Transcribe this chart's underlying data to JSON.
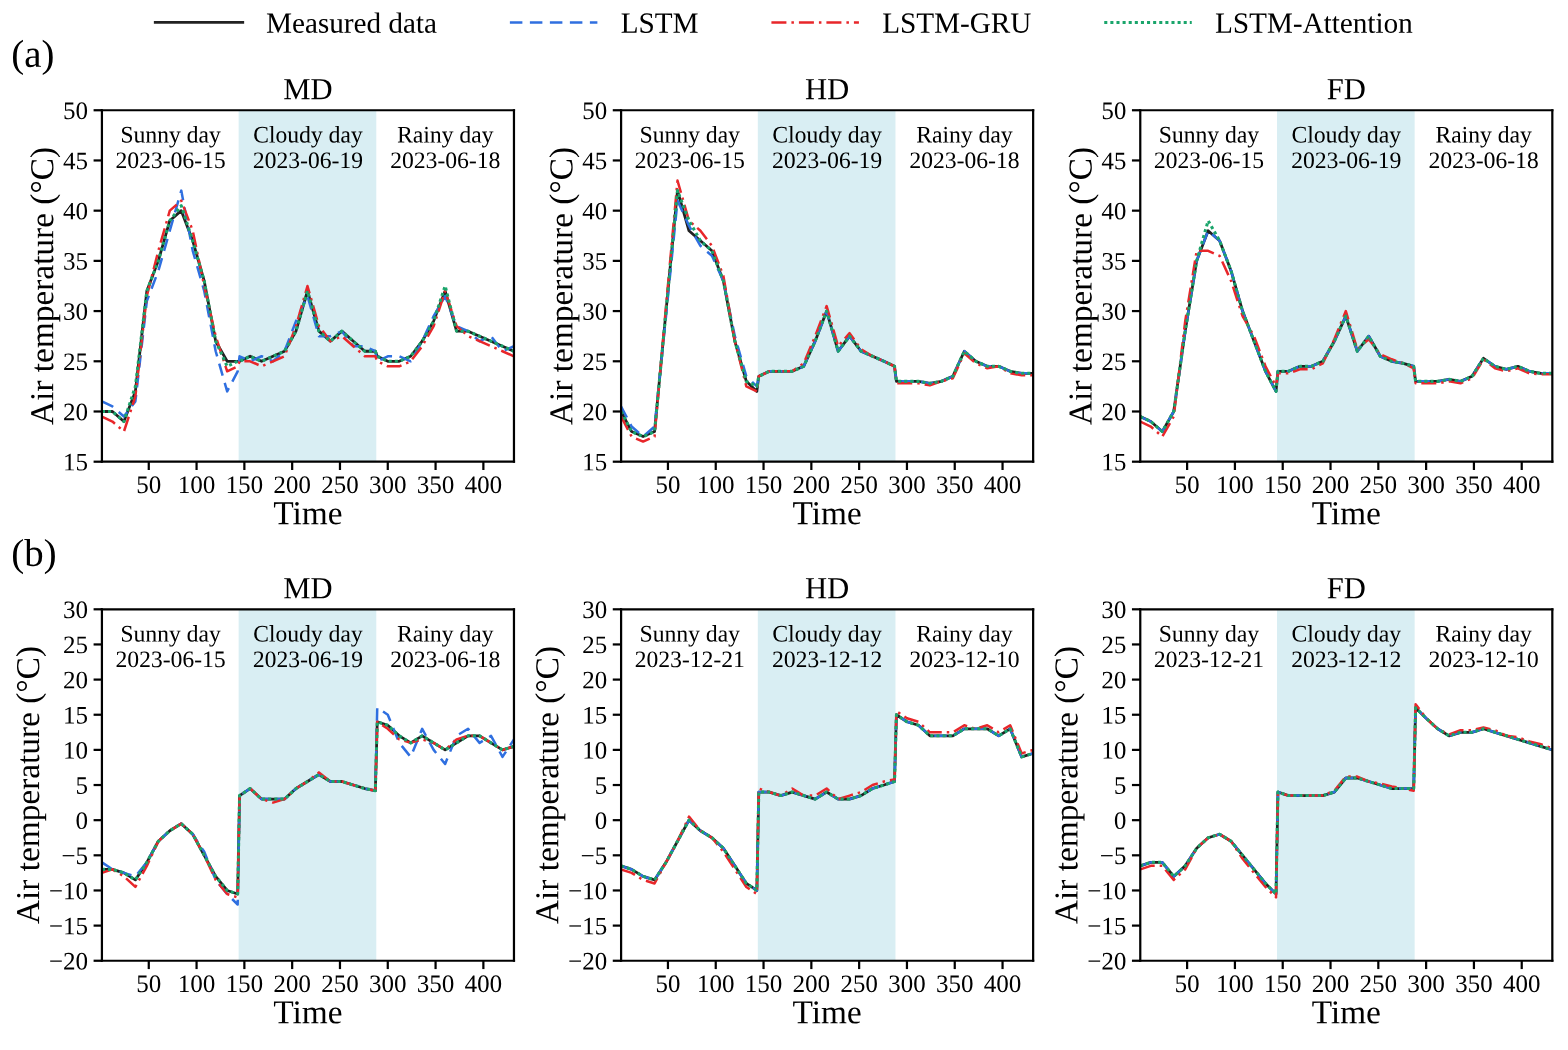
{
  "chart_data": [
    {
      "type": "line",
      "title": "MD",
      "xlabel": "Time",
      "ylabel": "Air temperature (°C)",
      "legend": "top",
      "annotations": [
        "Sunny day\n2023-06-15",
        "Cloudy day\n2023-06-19",
        "Rainy day\n2023-06-18",
        "(a)"
      ],
      "bands": [
        {
          "axis": "x",
          "from": 144,
          "to": 288,
          "color": "#d9eef3"
        }
      ],
      "xlim": [
        1,
        432
      ],
      "xticks": [
        50,
        100,
        150,
        200,
        250,
        300,
        350,
        400
      ],
      "ylim": [
        15,
        50
      ],
      "yticks": [
        15,
        20,
        25,
        30,
        35,
        40,
        45,
        50
      ],
      "x": [
        1,
        12,
        24,
        36,
        48,
        60,
        72,
        84,
        96,
        108,
        120,
        132,
        143,
        145,
        156,
        168,
        180,
        192,
        204,
        216,
        228,
        240,
        252,
        264,
        276,
        287,
        289,
        300,
        312,
        324,
        336,
        348,
        360,
        372,
        384,
        396,
        408,
        420,
        432
      ],
      "series": [
        {
          "name": "Measured data",
          "color": "#222222",
          "line_style": "solid",
          "values": [
            20,
            20,
            19,
            22,
            32,
            35,
            39,
            40,
            37,
            33,
            27,
            25,
            25,
            25,
            25.5,
            25,
            25.5,
            26,
            28,
            32,
            28,
            27,
            28,
            27,
            26,
            26,
            25.5,
            25,
            25,
            25.5,
            27,
            29,
            32,
            28,
            28,
            27.5,
            27,
            26.5,
            26
          ]
        },
        {
          "name": "LSTM",
          "color": "#2f6fe0",
          "line_style": "dashed",
          "values": [
            21,
            20.5,
            19.5,
            21,
            31,
            34,
            38,
            42,
            36,
            32,
            26,
            22,
            24,
            25.5,
            25,
            25.5,
            25,
            26,
            29,
            31.5,
            27.5,
            27.5,
            28,
            26.5,
            26.5,
            26,
            25,
            25.5,
            25.5,
            25,
            27,
            29.5,
            31.5,
            28.5,
            28,
            27,
            27.5,
            26,
            26.5
          ]
        },
        {
          "name": "LSTM-GRU",
          "color": "#e8262a",
          "line_style": "dashdot",
          "values": [
            19.5,
            19,
            18,
            21.5,
            31.5,
            36,
            40,
            41,
            38,
            32.5,
            27.5,
            24,
            24.5,
            25,
            25,
            24.5,
            25,
            25.5,
            28.5,
            32.5,
            28.5,
            27,
            27.5,
            26.5,
            25.5,
            25.5,
            25,
            24.5,
            24.5,
            25,
            26.5,
            28.5,
            32,
            28.5,
            27.5,
            27,
            26.5,
            26,
            25.5
          ]
        },
        {
          "name": "LSTM-Attention",
          "color": "#1aa56b",
          "line_style": "dotted",
          "values": [
            20,
            20,
            19,
            22.5,
            32,
            35,
            39,
            40.5,
            37,
            33,
            27,
            24.5,
            25,
            25,
            25.5,
            25,
            25.5,
            26,
            28,
            32,
            28,
            27,
            28,
            27,
            26,
            26,
            25.5,
            25,
            25,
            25.5,
            27,
            29,
            32.5,
            28,
            28,
            27.5,
            27,
            26.5,
            26
          ]
        }
      ]
    },
    {
      "type": "line",
      "title": "HD",
      "xlabel": "Time",
      "ylabel": "Air temperature (°C)",
      "annotations": [
        "Sunny day\n2023-06-15",
        "Cloudy day\n2023-06-19",
        "Rainy day\n2023-06-18"
      ],
      "bands": [
        {
          "axis": "x",
          "from": 144,
          "to": 288,
          "color": "#d9eef3"
        }
      ],
      "xlim": [
        1,
        432
      ],
      "xticks": [
        50,
        100,
        150,
        200,
        250,
        300,
        350,
        400
      ],
      "ylim": [
        15,
        50
      ],
      "yticks": [
        15,
        20,
        25,
        30,
        35,
        40,
        45,
        50
      ],
      "x": [
        1,
        12,
        24,
        36,
        48,
        60,
        72,
        84,
        96,
        108,
        120,
        132,
        143,
        145,
        156,
        168,
        180,
        192,
        204,
        216,
        228,
        240,
        252,
        264,
        276,
        287,
        289,
        300,
        312,
        324,
        336,
        348,
        360,
        372,
        384,
        396,
        408,
        420,
        432
      ],
      "series": [
        {
          "color": "#222222",
          "line_style": "solid",
          "values": [
            20,
            18,
            17.5,
            18,
            30,
            42,
            38,
            37,
            36,
            33,
            27,
            23,
            22,
            23.5,
            24,
            24,
            24,
            24.5,
            27,
            30,
            26,
            27.5,
            26,
            25.5,
            25,
            24.5,
            23,
            23,
            23,
            22.8,
            23,
            23.5,
            26,
            25,
            24.5,
            24.5,
            24,
            23.8,
            23.8
          ]
        },
        {
          "color": "#2f6fe0",
          "line_style": "dashed",
          "values": [
            20.5,
            18.5,
            17.5,
            18.5,
            29.5,
            41,
            38.5,
            36.5,
            35.5,
            33,
            27.5,
            23.5,
            22.5,
            23.5,
            24,
            24,
            24,
            24.5,
            27,
            30,
            26,
            27.5,
            26,
            25.5,
            25,
            24.5,
            23,
            23,
            23,
            22.8,
            23,
            23.5,
            26,
            25,
            24.5,
            24.5,
            24,
            23.8,
            23.8
          ]
        },
        {
          "color": "#e8262a",
          "line_style": "dashdot",
          "values": [
            19.5,
            17.5,
            17,
            17.5,
            30.5,
            43,
            39,
            38,
            36.5,
            33.5,
            27,
            22.5,
            22,
            23.5,
            24,
            24,
            24,
            24.8,
            27.5,
            30.5,
            26.5,
            27.8,
            26.2,
            25.5,
            25,
            24.5,
            22.8,
            22.8,
            22.8,
            22.6,
            23,
            23.3,
            25.8,
            24.8,
            24.3,
            24.5,
            23.8,
            23.6,
            23.6
          ]
        },
        {
          "color": "#1aa56b",
          "line_style": "dotted",
          "values": [
            20,
            18,
            17.5,
            18,
            30,
            42,
            39,
            37,
            36,
            33,
            27,
            23,
            22.5,
            23.5,
            24,
            24,
            24,
            24.5,
            27,
            30,
            26,
            27.5,
            26,
            25.5,
            25,
            24.5,
            23,
            23,
            23,
            22.8,
            23,
            23.5,
            26,
            25,
            24.5,
            24.5,
            24,
            23.8,
            23.8
          ]
        }
      ]
    },
    {
      "type": "line",
      "title": "FD",
      "xlabel": "Time",
      "ylabel": "Air temperature (°C)",
      "annotations": [
        "Sunny day\n2023-06-15",
        "Cloudy day\n2023-06-19",
        "Rainy day\n2023-06-18"
      ],
      "bands": [
        {
          "axis": "x",
          "from": 144,
          "to": 288,
          "color": "#d9eef3"
        }
      ],
      "xlim": [
        1,
        432
      ],
      "xticks": [
        50,
        100,
        150,
        200,
        250,
        300,
        350,
        400
      ],
      "ylim": [
        15,
        50
      ],
      "yticks": [
        15,
        20,
        25,
        30,
        35,
        40,
        45,
        50
      ],
      "x": [
        1,
        12,
        24,
        36,
        48,
        60,
        72,
        84,
        96,
        108,
        120,
        132,
        143,
        145,
        156,
        168,
        180,
        192,
        204,
        216,
        228,
        240,
        252,
        264,
        276,
        287,
        289,
        300,
        312,
        324,
        336,
        348,
        360,
        372,
        384,
        396,
        408,
        420,
        432
      ],
      "series": [
        {
          "color": "#222222",
          "line_style": "solid",
          "values": [
            19.5,
            19,
            18,
            20,
            28,
            35,
            38,
            37,
            34,
            30,
            27,
            24,
            22,
            24,
            24,
            24.5,
            24.5,
            25,
            27,
            29.5,
            26,
            27.5,
            25.5,
            25,
            24.8,
            24.5,
            23,
            23,
            23,
            23.2,
            23,
            23.5,
            25.3,
            24.5,
            24.2,
            24.5,
            24,
            23.8,
            23.8
          ]
        },
        {
          "color": "#2f6fe0",
          "line_style": "dashed",
          "values": [
            19.5,
            19,
            18,
            20,
            28,
            35,
            38,
            37,
            34,
            30,
            27,
            24,
            22,
            24,
            24,
            24.5,
            24.5,
            25,
            27,
            29.5,
            26,
            27.5,
            25.5,
            25,
            24.8,
            24.5,
            23,
            23,
            23,
            23.2,
            23,
            23.5,
            25.3,
            24.5,
            24.2,
            24.5,
            24,
            23.8,
            23.8
          ]
        },
        {
          "color": "#e8262a",
          "line_style": "dashdot",
          "values": [
            19,
            18.5,
            17.5,
            19.5,
            29,
            36,
            36,
            35.5,
            33,
            29.5,
            27.5,
            24.5,
            22.5,
            23.8,
            23.8,
            24.2,
            24.2,
            24.8,
            27.2,
            30,
            26.2,
            27.2,
            25.7,
            25.2,
            24.8,
            24.3,
            22.8,
            22.8,
            22.8,
            23,
            22.8,
            23.3,
            25.2,
            24.3,
            24,
            24.3,
            23.8,
            23.7,
            23.7
          ]
        },
        {
          "color": "#1aa56b",
          "line_style": "dotted",
          "values": [
            19.5,
            19,
            18,
            20,
            28,
            35,
            39,
            37,
            34,
            30,
            27,
            24,
            22,
            24,
            24,
            24.5,
            24.5,
            25,
            27,
            29.5,
            26,
            27.5,
            25.5,
            25,
            24.8,
            24.5,
            23,
            23,
            23,
            23.2,
            23,
            23.5,
            25.3,
            24.5,
            24.2,
            24.5,
            24,
            23.8,
            23.8
          ]
        }
      ]
    },
    {
      "type": "line",
      "title": "MD",
      "xlabel": "Time",
      "ylabel": "Air temperature (°C)",
      "annotations": [
        "Sunny day\n2023-06-15",
        "Cloudy day\n2023-06-19",
        "Rainy day\n2023-06-18",
        "(b)"
      ],
      "bands": [
        {
          "axis": "x",
          "from": 144,
          "to": 288,
          "color": "#d9eef3"
        }
      ],
      "xlim": [
        1,
        432
      ],
      "xticks": [
        50,
        100,
        150,
        200,
        250,
        300,
        350,
        400
      ],
      "ylim": [
        -20,
        30
      ],
      "yticks": [
        {
          "value": -20,
          "label": "−20"
        },
        {
          "value": -15,
          "label": "−15"
        },
        {
          "value": -10,
          "label": "−10"
        },
        {
          "value": -5,
          "label": "−5"
        },
        0,
        5,
        10,
        15,
        20,
        25,
        30
      ],
      "x": [
        1,
        12,
        24,
        36,
        48,
        60,
        72,
        84,
        96,
        108,
        120,
        132,
        143,
        145,
        156,
        168,
        180,
        192,
        204,
        216,
        228,
        240,
        252,
        264,
        276,
        287,
        289,
        300,
        312,
        324,
        336,
        348,
        360,
        372,
        384,
        396,
        408,
        420,
        432
      ],
      "series": [
        {
          "color": "#222222",
          "line_style": "solid",
          "values": [
            -7,
            -7,
            -7.5,
            -8.5,
            -6,
            -3,
            -1.5,
            -0.5,
            -2,
            -5,
            -8,
            -10,
            -10.5,
            3.5,
            4.5,
            3,
            3,
            3,
            4.5,
            5.5,
            6.5,
            5.5,
            5.5,
            5,
            4.5,
            4.2,
            14,
            13.5,
            12,
            11,
            12,
            11,
            10,
            11,
            12,
            12,
            11,
            10,
            10.5
          ]
        },
        {
          "color": "#2f6fe0",
          "line_style": "dashed",
          "values": [
            -6,
            -7,
            -7.5,
            -8,
            -6,
            -3,
            -1.5,
            -0.5,
            -2,
            -4.5,
            -8.5,
            -10.5,
            -12,
            3.5,
            4.5,
            3,
            3,
            3,
            4.5,
            5.5,
            6.5,
            5.5,
            5.5,
            5,
            4.5,
            4.2,
            16,
            15,
            11,
            9,
            13,
            10,
            8,
            12,
            13,
            11,
            12,
            9,
            11.5
          ]
        },
        {
          "color": "#e8262a",
          "line_style": "dashdot",
          "values": [
            -7.5,
            -7,
            -8,
            -9.5,
            -6.5,
            -3,
            -1.5,
            -0.5,
            -2,
            -5,
            -8.5,
            -10.5,
            -11,
            3.5,
            4.5,
            3,
            2.5,
            3,
            4.5,
            5.5,
            6.8,
            5.5,
            5.5,
            5,
            4.5,
            4.2,
            14,
            13,
            11.5,
            11,
            11.5,
            11,
            10,
            11.5,
            12,
            12,
            11,
            10,
            10.5
          ]
        },
        {
          "color": "#1aa56b",
          "line_style": "dotted",
          "values": [
            -7,
            -7,
            -7.5,
            -8.5,
            -6,
            -3,
            -1.5,
            -0.5,
            -2,
            -5,
            -8,
            -10,
            -10.5,
            3.5,
            4.5,
            3,
            3,
            3,
            4.5,
            5.5,
            6.5,
            5.5,
            5.5,
            5,
            4.5,
            4.2,
            14,
            13.5,
            12,
            11,
            12,
            11,
            10,
            11,
            12,
            12,
            11,
            10,
            10.5
          ]
        }
      ]
    },
    {
      "type": "line",
      "title": "HD",
      "xlabel": "Time",
      "ylabel": "Air temperature (°C)",
      "annotations": [
        "Sunny day\n2023-12-21",
        "Cloudy day\n2023-12-12",
        "Rainy day\n2023-12-10"
      ],
      "bands": [
        {
          "axis": "x",
          "from": 144,
          "to": 288,
          "color": "#d9eef3"
        }
      ],
      "xlim": [
        1,
        432
      ],
      "xticks": [
        50,
        100,
        150,
        200,
        250,
        300,
        350,
        400
      ],
      "ylim": [
        -20,
        30
      ],
      "yticks": [
        {
          "value": -20,
          "label": "−20"
        },
        {
          "value": -15,
          "label": "−15"
        },
        {
          "value": -10,
          "label": "−10"
        },
        {
          "value": -5,
          "label": "−5"
        },
        0,
        5,
        10,
        15,
        20,
        25,
        30
      ],
      "x": [
        1,
        12,
        24,
        36,
        48,
        60,
        72,
        84,
        96,
        108,
        120,
        132,
        143,
        145,
        156,
        168,
        180,
        192,
        204,
        216,
        228,
        240,
        252,
        264,
        276,
        287,
        289,
        300,
        312,
        324,
        336,
        348,
        360,
        372,
        384,
        396,
        408,
        420,
        432
      ],
      "series": [
        {
          "color": "#222222",
          "line_style": "solid",
          "values": [
            -6.5,
            -7,
            -8,
            -8.5,
            -6,
            -3,
            0,
            -1.5,
            -2.5,
            -4,
            -6.5,
            -9,
            -10,
            4,
            4,
            3.5,
            4,
            3.5,
            3,
            4,
            3,
            3,
            3.5,
            4.5,
            5,
            5.5,
            15,
            14,
            13.5,
            12,
            12,
            12,
            13,
            13,
            13,
            12,
            13,
            9,
            9.5
          ]
        },
        {
          "color": "#2f6fe0",
          "line_style": "dashed",
          "values": [
            -6.5,
            -7,
            -8,
            -8.5,
            -6,
            -3,
            0,
            -1.5,
            -2.5,
            -4,
            -6.5,
            -9,
            -10,
            4,
            4,
            3.5,
            4,
            3.5,
            3,
            4,
            3,
            3,
            3.5,
            4.5,
            5,
            5.5,
            15,
            14,
            13.5,
            12,
            12,
            12,
            13,
            13,
            13,
            12,
            13,
            9,
            9.5
          ]
        },
        {
          "color": "#e8262a",
          "line_style": "dashdot",
          "values": [
            -7,
            -7.5,
            -8.5,
            -9,
            -6,
            -3,
            0.5,
            -1.5,
            -2.5,
            -4.5,
            -7,
            -9.5,
            -10.5,
            4.5,
            4,
            3.5,
            4.5,
            3.5,
            3.5,
            4.5,
            3,
            3.5,
            4,
            5,
            5.5,
            5.8,
            15.5,
            14.5,
            14,
            12.5,
            12.5,
            12.5,
            13.5,
            13,
            13.5,
            12.5,
            13.5,
            9.5,
            10
          ]
        },
        {
          "color": "#1aa56b",
          "line_style": "dotted",
          "values": [
            -6.5,
            -7,
            -8,
            -8.5,
            -6,
            -3,
            0,
            -1.5,
            -2.5,
            -4,
            -6.5,
            -9,
            -10,
            4,
            4,
            3.5,
            4,
            3.5,
            3,
            4,
            3,
            3,
            3.5,
            4.5,
            5,
            5.5,
            15,
            14,
            13.5,
            12,
            12,
            12,
            13,
            13,
            13,
            12,
            13,
            9,
            9.5
          ]
        }
      ]
    },
    {
      "type": "line",
      "title": "FD",
      "xlabel": "Time",
      "ylabel": "Air temperature (°C)",
      "annotations": [
        "Sunny day\n2023-12-21",
        "Cloudy day\n2023-12-12",
        "Rainy day\n2023-12-10"
      ],
      "bands": [
        {
          "axis": "x",
          "from": 144,
          "to": 288,
          "color": "#d9eef3"
        }
      ],
      "xlim": [
        1,
        432
      ],
      "xticks": [
        50,
        100,
        150,
        200,
        250,
        300,
        350,
        400
      ],
      "ylim": [
        -20,
        30
      ],
      "yticks": [
        {
          "value": -20,
          "label": "−20"
        },
        {
          "value": -15,
          "label": "−15"
        },
        {
          "value": -10,
          "label": "−10"
        },
        {
          "value": -5,
          "label": "−5"
        },
        0,
        5,
        10,
        15,
        20,
        25,
        30
      ],
      "x": [
        1,
        12,
        24,
        36,
        48,
        60,
        72,
        84,
        96,
        108,
        120,
        132,
        143,
        145,
        156,
        168,
        180,
        192,
        204,
        216,
        228,
        240,
        252,
        264,
        276,
        287,
        289,
        300,
        312,
        324,
        336,
        348,
        360,
        372,
        384,
        396,
        408,
        420,
        432
      ],
      "series": [
        {
          "color": "#222222",
          "line_style": "solid",
          "values": [
            -6.5,
            -6,
            -6,
            -8,
            -6.5,
            -4,
            -2.5,
            -2,
            -3,
            -5,
            -7,
            -9,
            -10.5,
            4,
            3.5,
            3.5,
            3.5,
            3.5,
            4,
            6,
            6,
            5.5,
            5,
            4.5,
            4.5,
            4.5,
            16,
            14.5,
            13,
            12,
            12.5,
            12.5,
            13,
            12.5,
            12,
            11.5,
            11,
            10.5,
            10
          ]
        },
        {
          "color": "#2f6fe0",
          "line_style": "dashed",
          "values": [
            -6.5,
            -6,
            -6,
            -8,
            -6.5,
            -4,
            -2.5,
            -2,
            -3,
            -5,
            -7,
            -9,
            -10.5,
            4,
            3.5,
            3.5,
            3.5,
            3.5,
            4,
            6,
            6,
            5.5,
            5,
            4.5,
            4.5,
            4.5,
            16,
            14.5,
            13,
            12,
            12.5,
            12.5,
            13,
            12.5,
            12,
            11.5,
            11,
            10.5,
            10
          ]
        },
        {
          "color": "#e8262a",
          "line_style": "dashdot",
          "values": [
            -7,
            -6.5,
            -6.5,
            -8.5,
            -7,
            -4,
            -2.5,
            -2,
            -3,
            -5.5,
            -7.5,
            -9.5,
            -11,
            4,
            3.5,
            3.5,
            3.5,
            3.5,
            4.2,
            6.2,
            6.2,
            5.5,
            5.2,
            4.8,
            4.5,
            4.2,
            16.5,
            14.5,
            13,
            12.2,
            12.8,
            12.8,
            13.2,
            12.8,
            12,
            11.8,
            11.2,
            10.8,
            10.2
          ]
        },
        {
          "color": "#1aa56b",
          "line_style": "dotted",
          "values": [
            -6.5,
            -6,
            -6,
            -8,
            -6.5,
            -4,
            -2.5,
            -2,
            -3,
            -5,
            -7,
            -9,
            -10.5,
            4,
            3.5,
            3.5,
            3.5,
            3.5,
            4,
            6,
            6,
            5.5,
            5,
            4.5,
            4.5,
            4.5,
            16,
            14.5,
            13,
            12,
            12.5,
            12.5,
            13,
            12.5,
            12,
            11.5,
            11,
            10.5,
            10
          ]
        }
      ]
    }
  ]
}
